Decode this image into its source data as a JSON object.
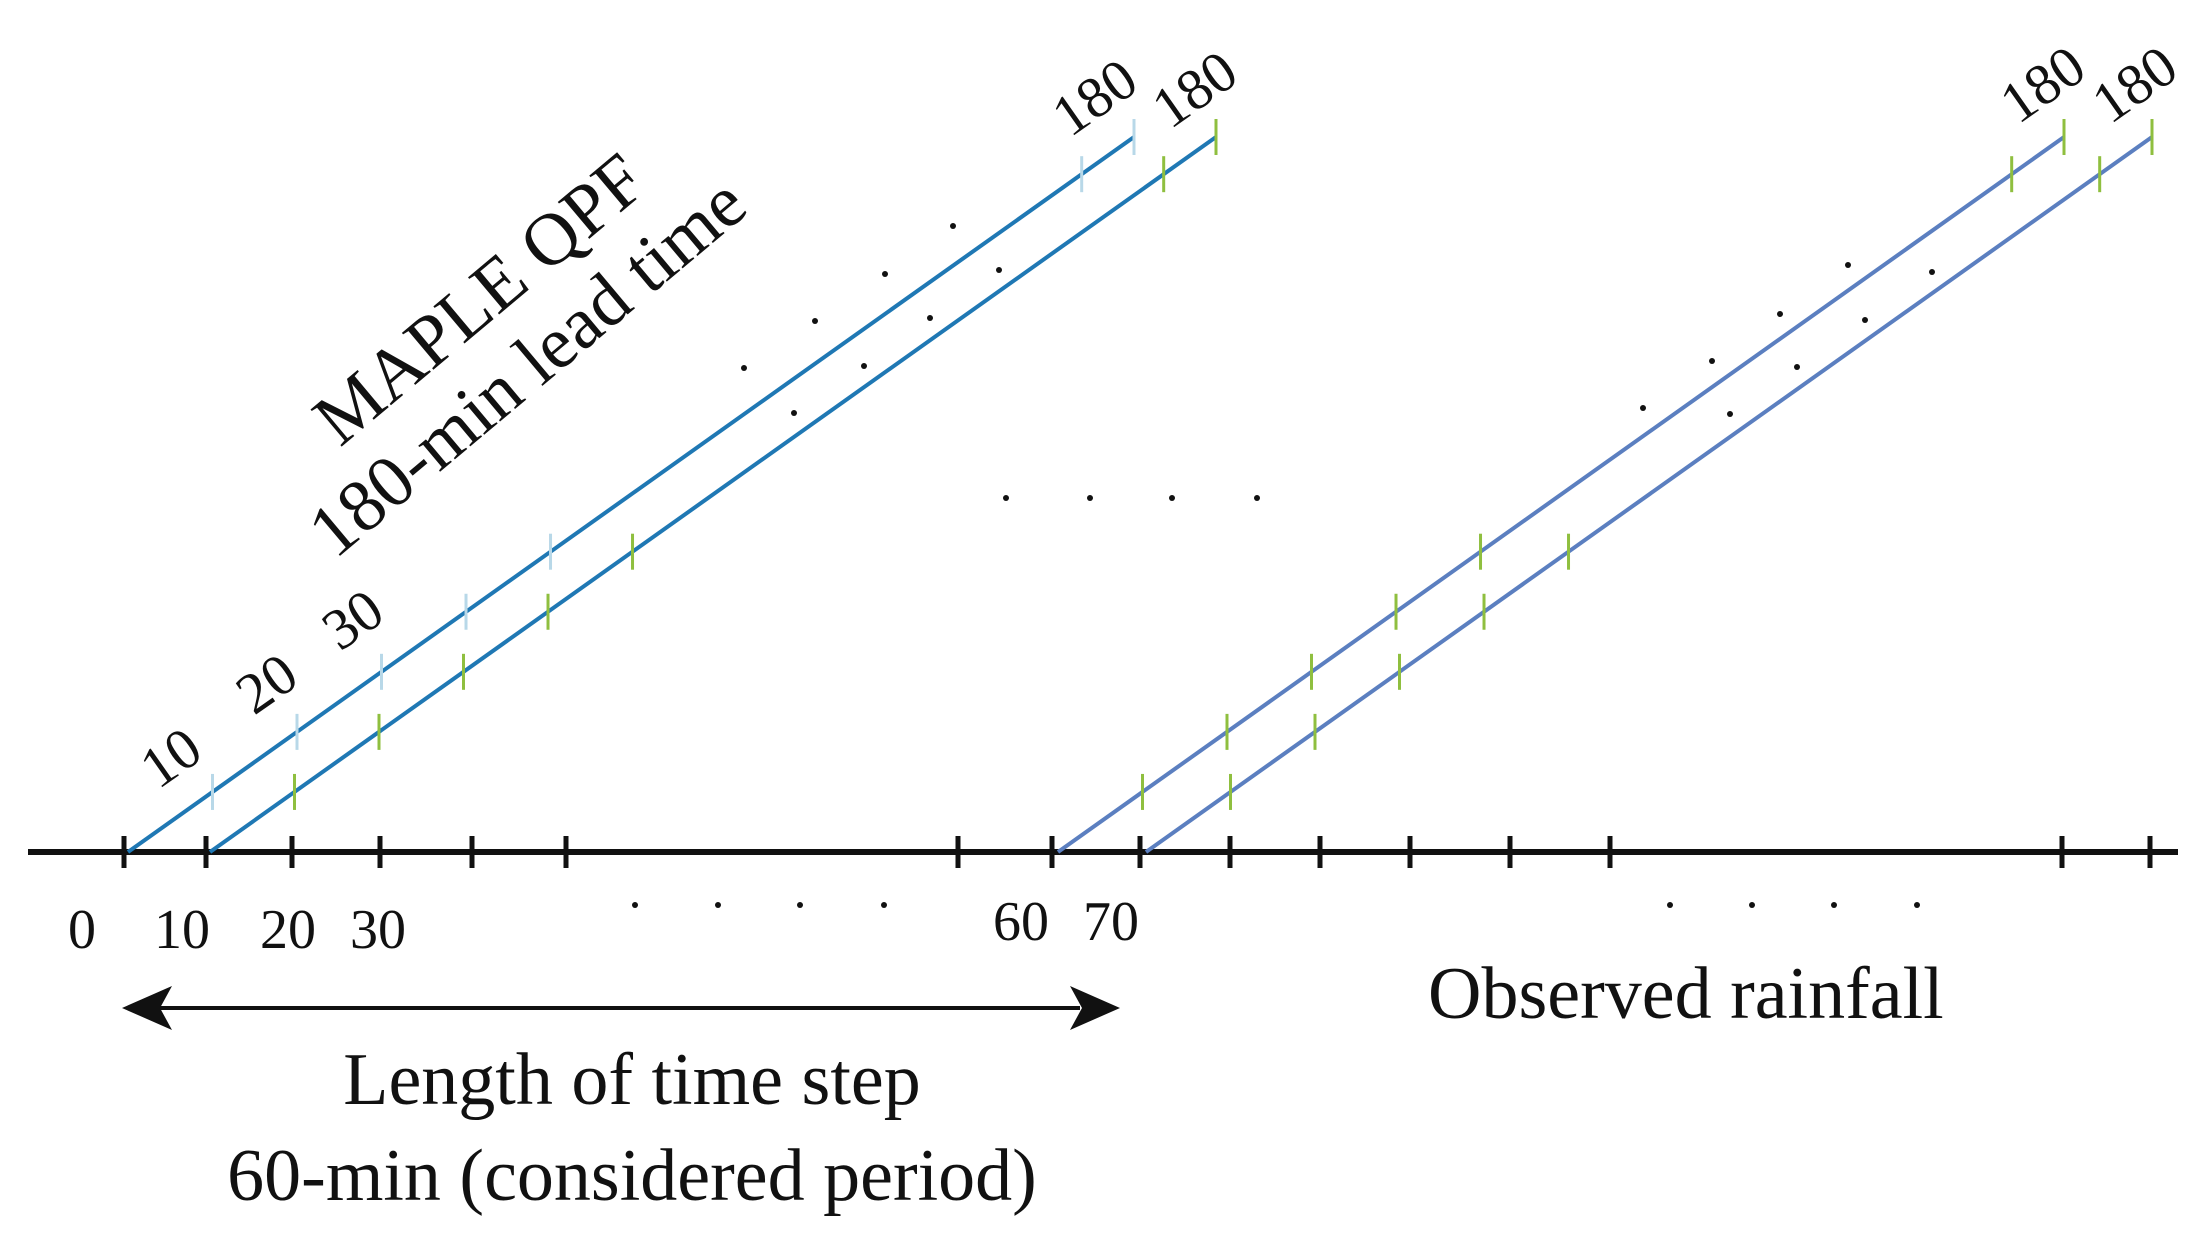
{
  "title": {
    "line1": "MAPLE QPF",
    "line2": "180-min lead time"
  },
  "axis": {
    "tick_labels": [
      "0",
      "10",
      "20",
      "30",
      "60",
      "70"
    ],
    "ellipsis": ". . . ."
  },
  "lead_labels": {
    "early": [
      "10",
      "20",
      "30"
    ],
    "end": "180"
  },
  "middle_ellipsis": ". . . .",
  "observed_label": "Observed rainfall",
  "time_step": {
    "line1": "Length of time step",
    "line2": "60-min (considered period)"
  },
  "colors": {
    "axis": "#111111",
    "forecast_line_left": "#1f78b4",
    "forecast_line_right": "#5b7fc0",
    "forecast_tick": "#8fbf3f",
    "forecast_tick_light": "#b8d8e8"
  }
}
